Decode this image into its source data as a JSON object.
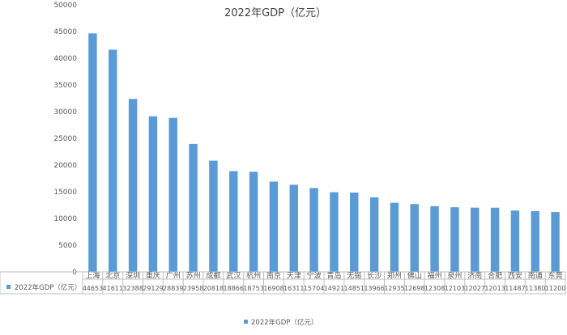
{
  "chart_data": {
    "type": "bar",
    "title": "2022年GDP（亿元）",
    "series": [
      {
        "name": "2022年GDP（亿元）",
        "values": [
          44653,
          41611,
          32388,
          29129,
          28839,
          23958,
          20818,
          18866,
          18753,
          16908,
          16311,
          15704,
          14921,
          14851,
          13966,
          12935,
          12698,
          12308,
          12103,
          12027,
          12013,
          11487,
          11380,
          11200
        ]
      }
    ],
    "categories": [
      "上海",
      "北京",
      "深圳",
      "重庆",
      "广州",
      "苏州",
      "成都",
      "武汉",
      "杭州",
      "南京",
      "天津",
      "宁波",
      "青岛",
      "无锡",
      "长沙",
      "郑州",
      "佛山",
      "福州",
      "泉州",
      "济南",
      "合肥",
      "西安",
      "南通",
      "东莞"
    ],
    "ylim": [
      0,
      50000
    ],
    "yticks": [
      0,
      5000,
      10000,
      15000,
      20000,
      25000,
      30000,
      35000,
      40000,
      45000,
      50000
    ],
    "grid": false,
    "legend_position": "bottom",
    "data_table": true,
    "colors": {
      "bar": "#5b9bd5",
      "axis": "#bfbfbf",
      "text": "#595959",
      "title": "#404040"
    }
  }
}
